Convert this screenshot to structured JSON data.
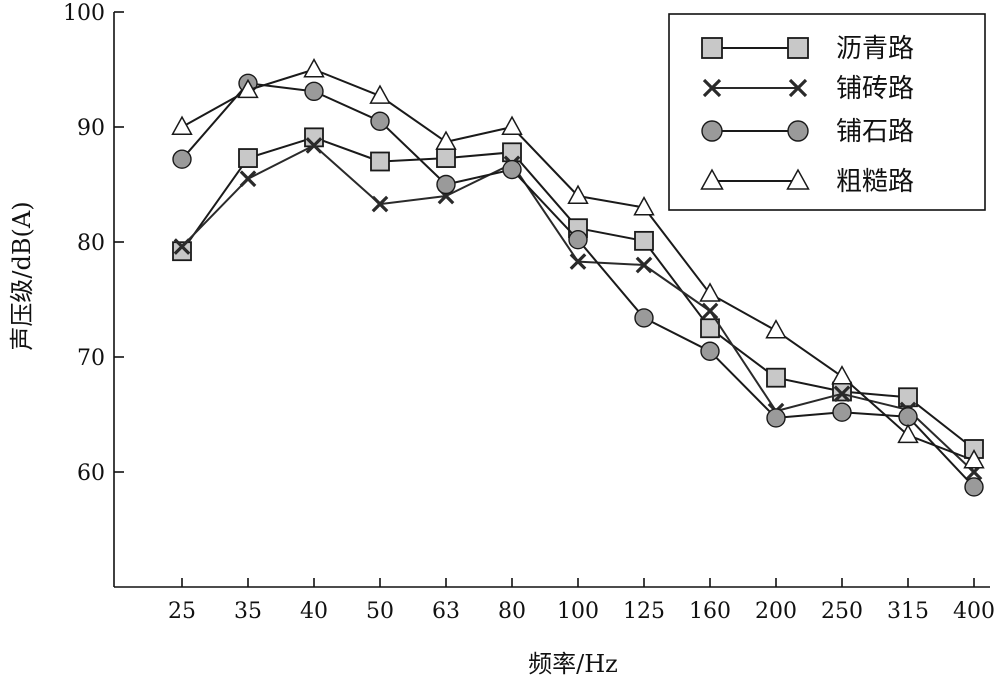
{
  "chart_data": {
    "type": "line",
    "xlabel": "频率/Hz",
    "ylabel": "声压级/dB(A)",
    "categories": [
      "25",
      "35",
      "40",
      "50",
      "63",
      "80",
      "100",
      "125",
      "160",
      "200",
      "250",
      "315",
      "400"
    ],
    "ylim": [
      50,
      100
    ],
    "yticks": [
      60,
      70,
      80,
      90,
      100
    ],
    "grid": false,
    "legend_position": "top-right",
    "series": [
      {
        "name": "沥青路",
        "marker": "square",
        "line": "solid",
        "color": "#1a1a1a",
        "fill": "#c8c8c8",
        "values": [
          79.2,
          87.3,
          89.1,
          87.0,
          87.3,
          87.8,
          81.2,
          80.1,
          72.5,
          68.2,
          67.0,
          66.5,
          62.0
        ]
      },
      {
        "name": "铺砖路",
        "marker": "x",
        "line": "solid",
        "color": "#2a2a2a",
        "fill": "none",
        "values": [
          79.6,
          85.5,
          88.4,
          83.3,
          84.0,
          86.8,
          78.3,
          78.0,
          74.0,
          65.3,
          66.8,
          65.4,
          60.0
        ]
      },
      {
        "name": "铺石路",
        "marker": "circle",
        "line": "solid",
        "color": "#1a1a1a",
        "fill": "#9a9a9a",
        "values": [
          87.2,
          93.8,
          93.1,
          90.5,
          85.0,
          86.3,
          80.2,
          73.4,
          70.5,
          64.7,
          65.2,
          64.8,
          58.7
        ]
      },
      {
        "name": "粗糙路",
        "marker": "triangle",
        "line": "solid",
        "color": "#1a1a1a",
        "fill": "#ffffff",
        "values": [
          90.0,
          93.2,
          95.0,
          92.7,
          88.7,
          90.0,
          84.0,
          83.0,
          75.5,
          72.3,
          68.3,
          63.2,
          61.0
        ]
      }
    ]
  }
}
